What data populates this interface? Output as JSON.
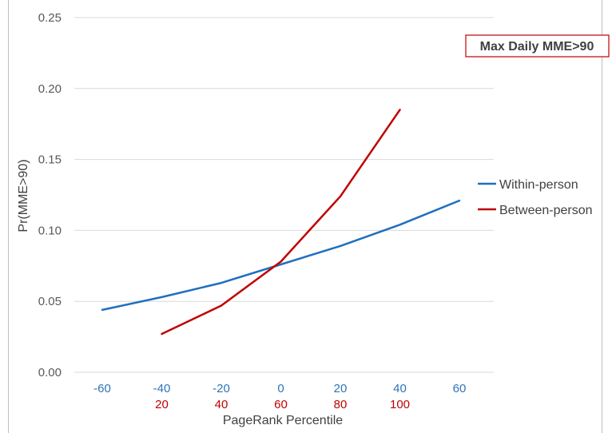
{
  "chart_data": {
    "type": "line",
    "title": "Max Daily MME>90",
    "xlabel": "PageRank Percentile",
    "ylabel": "Pr(MME>90)",
    "ylim": [
      0,
      0.25
    ],
    "yticks": [
      "0.00",
      "0.05",
      "0.10",
      "0.15",
      "0.20",
      "0.25"
    ],
    "xticks_top": [
      "-60",
      "-40",
      "-20",
      "0",
      "20",
      "40",
      "60"
    ],
    "xticks_bottom": [
      "20",
      "40",
      "60",
      "80",
      "100"
    ],
    "grid": true,
    "legend_position": "right",
    "series": [
      {
        "name": "Within-person",
        "color": "#1f6fbf",
        "x": [
          -60,
          -40,
          -20,
          0,
          20,
          40,
          60
        ],
        "values": [
          0.044,
          0.053,
          0.063,
          0.076,
          0.089,
          0.104,
          0.121
        ]
      },
      {
        "name": "Between-person",
        "color": "#c00000",
        "x": [
          20,
          40,
          60,
          80,
          100
        ],
        "values": [
          0.027,
          0.047,
          0.078,
          0.124,
          0.185
        ]
      }
    ]
  },
  "colors": {
    "axis_top_labels": "#2e75b6",
    "axis_bottom_labels": "#c00000",
    "gridline": "#d9d9d9",
    "title_box_border": "#c00000"
  }
}
